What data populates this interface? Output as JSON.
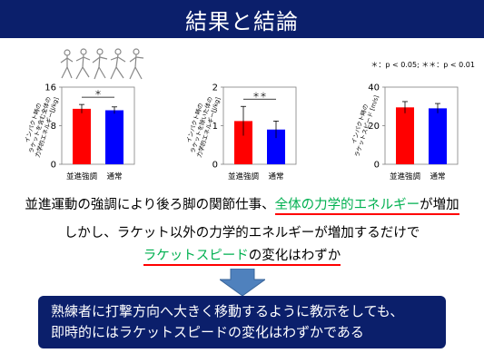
{
  "title": "結果と結論",
  "significance_note": "＊：p < 0.05; ＊＊：p < 0.01",
  "chart_data": [
    {
      "type": "bar",
      "title": "",
      "ylabel_lines": [
        "インパクト時の",
        "ラケットを含む全体の",
        "力学的エネルギー[J/kg]"
      ],
      "categories": [
        "並進強調",
        "通常"
      ],
      "values": [
        11.5,
        11.2
      ],
      "errors": [
        0.9,
        0.7
      ],
      "colors": [
        "#ff0000",
        "#0000ff"
      ],
      "ylim": [
        0,
        16
      ],
      "yticks": [
        0,
        8,
        16
      ],
      "significance": "＊"
    },
    {
      "type": "bar",
      "title": "",
      "ylabel_lines": [
        "インパクト時の",
        "ラケットを除いた体の",
        "力学的エネルギー[J/kg]"
      ],
      "categories": [
        "並進強調",
        "通常"
      ],
      "values": [
        1.12,
        0.9
      ],
      "errors": [
        0.38,
        0.22
      ],
      "colors": [
        "#ff0000",
        "#0000ff"
      ],
      "ylim": [
        0,
        2
      ],
      "yticks": [
        0,
        1,
        2
      ],
      "significance": "＊＊"
    },
    {
      "type": "bar",
      "title": "",
      "ylabel_lines": [
        "インパクト時の",
        "ラケットスピード [m/s]"
      ],
      "categories": [
        "並進強調",
        "通常"
      ],
      "values": [
        29.5,
        29.0
      ],
      "errors": [
        3.0,
        2.5
      ],
      "colors": [
        "#ff0000",
        "#0000ff"
      ],
      "ylim": [
        0,
        40
      ],
      "yticks": [
        0,
        20,
        40
      ],
      "significance": ""
    }
  ],
  "text": {
    "line1_a": "並進運動の強調により後ろ脚の関節仕事、",
    "line1_b": "全体の力学的エネルギー",
    "line1_c": "が増加",
    "line2": "しかし、ラケット以外の力学的エネルギーが増加するだけで",
    "line3_a": "ラケットスピード",
    "line3_b": "の変化はわずか"
  },
  "conclusion": {
    "line1": "熟練者に打撃方向へ大きく移動するように教示をしても、",
    "line2": "即時的にはラケットスピードの変化はわずかである"
  },
  "colors": {
    "navy": "#0b1f6b",
    "red": "#ff0000",
    "blue": "#0000ff",
    "green": "#00b050",
    "arrow": "#4f81bd"
  }
}
